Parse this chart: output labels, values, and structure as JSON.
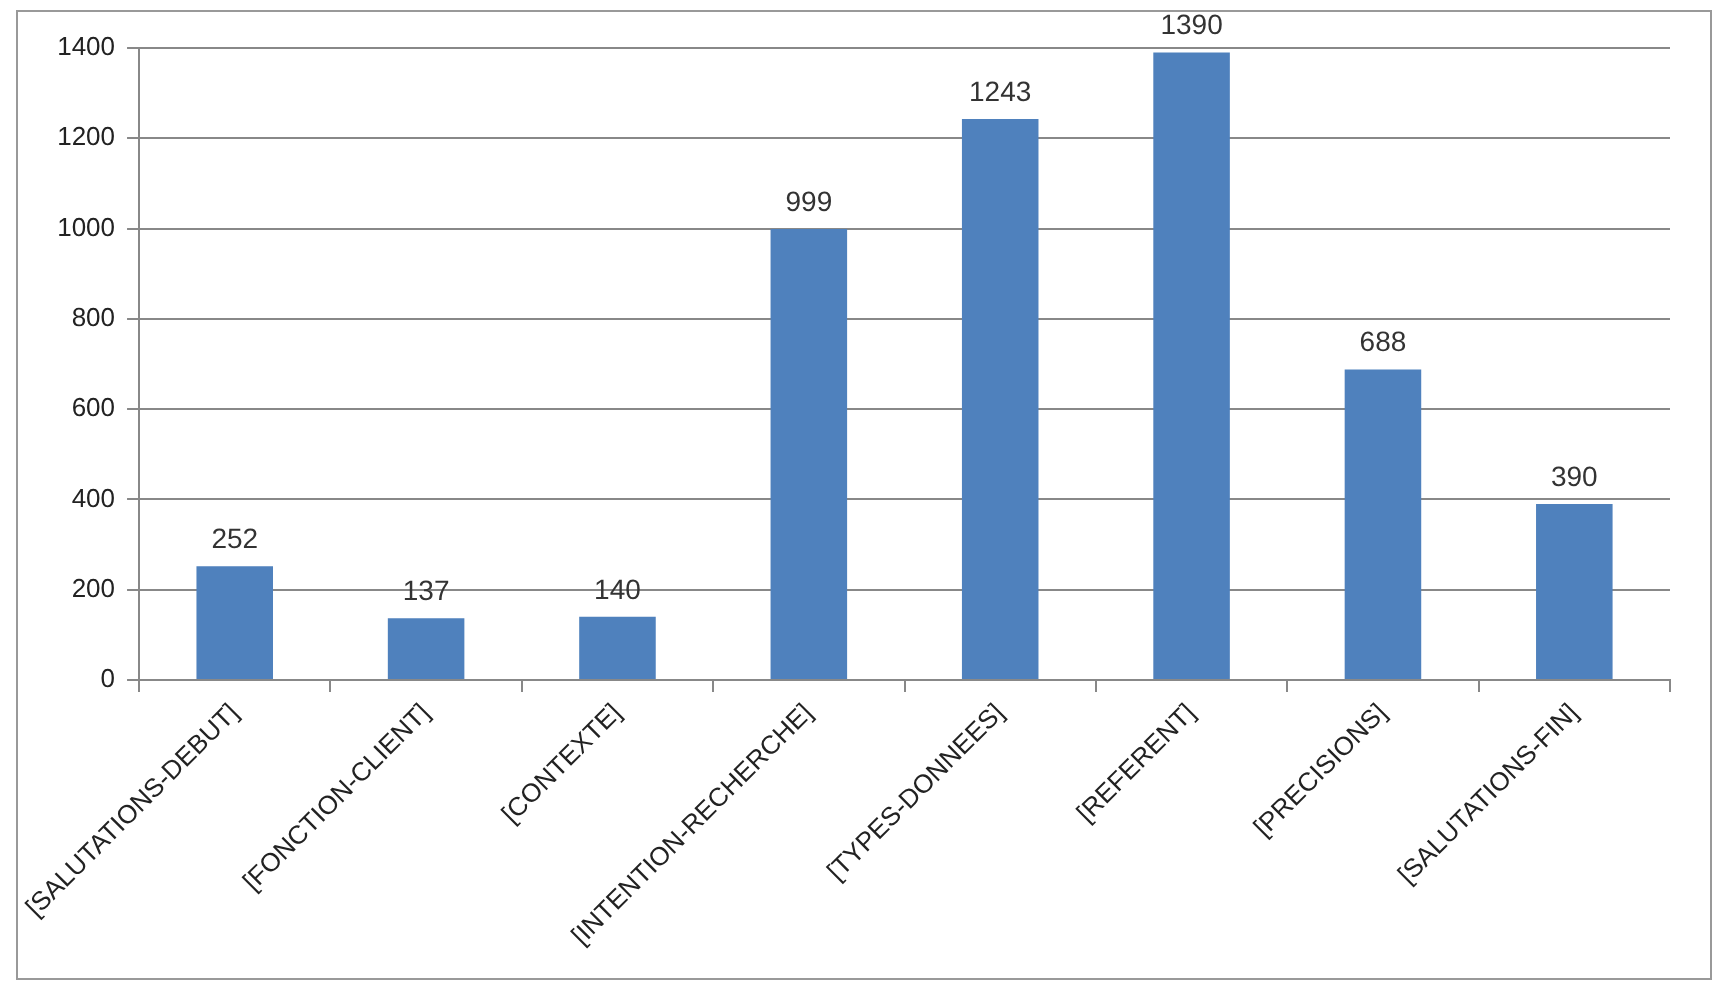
{
  "chart_data": {
    "type": "bar",
    "categories": [
      "[SALUTATIONS-DEBUT]",
      "[FONCTION-CLIENT]",
      "[CONTEXTE]",
      "[INTENTION-RECHERCHE]",
      "[TYPES-DONNEES]",
      "[REFERENT]",
      "[PRECISIONS]",
      "[SALUTATIONS-FIN]"
    ],
    "values": [
      252,
      137,
      140,
      999,
      1243,
      1390,
      688,
      390
    ],
    "color": "#4f81bd",
    "ylim": [
      0,
      1400
    ],
    "yticks": [
      0,
      200,
      400,
      600,
      800,
      1000,
      1200,
      1400
    ],
    "grid": "y",
    "data_labels": true,
    "legend": false
  }
}
